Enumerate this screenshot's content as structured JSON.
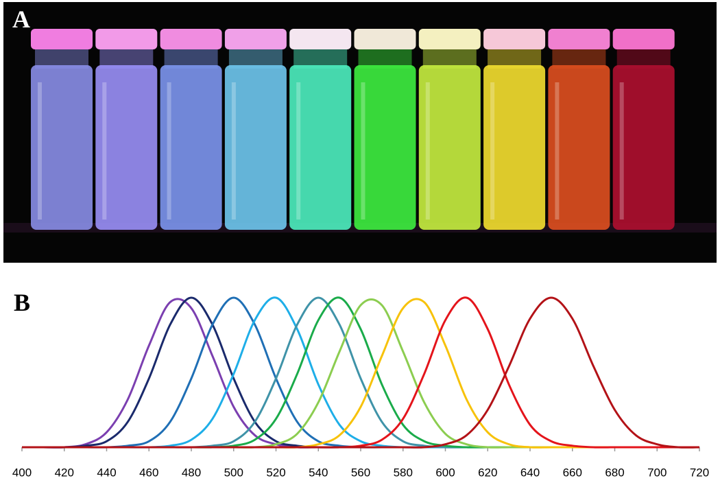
{
  "panel_a": {
    "label": "A"
  },
  "chart_data": {
    "type": "line",
    "panel_label": "B",
    "x": [
      400,
      410,
      420,
      430,
      440,
      450,
      460,
      470,
      480,
      490,
      500,
      510,
      520,
      530,
      540,
      550,
      560,
      570,
      580,
      590,
      600,
      610,
      620,
      630,
      640,
      650,
      660,
      670,
      680,
      690,
      700,
      710,
      720
    ],
    "xlim": [
      400,
      720
    ],
    "xticks": [
      400,
      420,
      440,
      460,
      480,
      500,
      520,
      540,
      560,
      580,
      600,
      620,
      640,
      660,
      680,
      700,
      720
    ],
    "ylim": [
      0,
      1
    ],
    "series": [
      {
        "color": "#7b3fb0",
        "values": [
          0,
          0,
          0,
          0.02,
          0.1,
          0.32,
          0.68,
          0.97,
          0.93,
          0.61,
          0.27,
          0.08,
          0.02,
          0,
          0,
          0,
          0,
          0,
          0,
          0,
          0,
          0,
          0,
          0,
          0,
          0,
          0,
          0,
          0,
          0,
          0,
          0,
          0
        ]
      },
      {
        "color": "#1a2a6c",
        "values": [
          0,
          0,
          0,
          0.01,
          0.04,
          0.17,
          0.46,
          0.82,
          1,
          0.82,
          0.46,
          0.17,
          0.04,
          0.01,
          0,
          0,
          0,
          0,
          0,
          0,
          0,
          0,
          0,
          0,
          0,
          0,
          0,
          0,
          0,
          0,
          0,
          0,
          0
        ]
      },
      {
        "color": "#1f6fb5",
        "values": [
          0,
          0,
          0,
          0,
          0,
          0.01,
          0.04,
          0.17,
          0.46,
          0.82,
          1,
          0.82,
          0.46,
          0.17,
          0.04,
          0.01,
          0,
          0,
          0,
          0,
          0,
          0,
          0,
          0,
          0,
          0,
          0,
          0,
          0,
          0,
          0,
          0,
          0
        ]
      },
      {
        "color": "#1eaee8",
        "values": [
          0,
          0,
          0,
          0,
          0,
          0,
          0,
          0.01,
          0.05,
          0.19,
          0.49,
          0.85,
          1,
          0.79,
          0.42,
          0.15,
          0.04,
          0.01,
          0,
          0,
          0,
          0,
          0,
          0,
          0,
          0,
          0,
          0,
          0,
          0,
          0,
          0,
          0
        ]
      },
      {
        "color": "#3f93a8",
        "values": [
          0,
          0,
          0,
          0,
          0,
          0,
          0,
          0,
          0,
          0.01,
          0.04,
          0.17,
          0.46,
          0.82,
          1,
          0.82,
          0.46,
          0.17,
          0.04,
          0.01,
          0,
          0,
          0,
          0,
          0,
          0,
          0,
          0,
          0,
          0,
          0,
          0,
          0
        ]
      },
      {
        "color": "#1aab4a",
        "values": [
          0,
          0,
          0,
          0,
          0,
          0,
          0,
          0,
          0,
          0,
          0.01,
          0.05,
          0.19,
          0.49,
          0.85,
          1,
          0.79,
          0.42,
          0.15,
          0.04,
          0.01,
          0,
          0,
          0,
          0,
          0,
          0,
          0,
          0,
          0,
          0,
          0,
          0
        ]
      },
      {
        "color": "#8ccd50",
        "values": [
          0,
          0,
          0,
          0,
          0,
          0,
          0,
          0,
          0,
          0,
          0,
          0,
          0.02,
          0.09,
          0.3,
          0.64,
          0.95,
          0.95,
          0.64,
          0.3,
          0.09,
          0.02,
          0,
          0,
          0,
          0,
          0,
          0,
          0,
          0,
          0,
          0,
          0
        ]
      },
      {
        "color": "#f7c20a",
        "values": [
          0,
          0,
          0,
          0,
          0,
          0,
          0,
          0,
          0,
          0,
          0,
          0,
          0,
          0,
          0.02,
          0.08,
          0.27,
          0.61,
          0.93,
          0.97,
          0.68,
          0.32,
          0.1,
          0.02,
          0,
          0,
          0,
          0,
          0,
          0,
          0,
          0,
          0
        ]
      },
      {
        "color": "#e4141b",
        "values": [
          0,
          0,
          0,
          0,
          0,
          0,
          0,
          0,
          0,
          0,
          0,
          0,
          0,
          0,
          0,
          0,
          0.01,
          0.05,
          0.19,
          0.49,
          0.85,
          1,
          0.79,
          0.42,
          0.15,
          0.04,
          0.01,
          0,
          0,
          0,
          0,
          0,
          0
        ]
      },
      {
        "color": "#b31217",
        "values": [
          0,
          0,
          0,
          0,
          0,
          0,
          0,
          0,
          0,
          0,
          0,
          0,
          0,
          0,
          0,
          0,
          0,
          0,
          0,
          0,
          0.02,
          0.08,
          0.25,
          0.54,
          0.86,
          1,
          0.86,
          0.54,
          0.25,
          0.08,
          0.02,
          0,
          0
        ]
      }
    ]
  }
}
